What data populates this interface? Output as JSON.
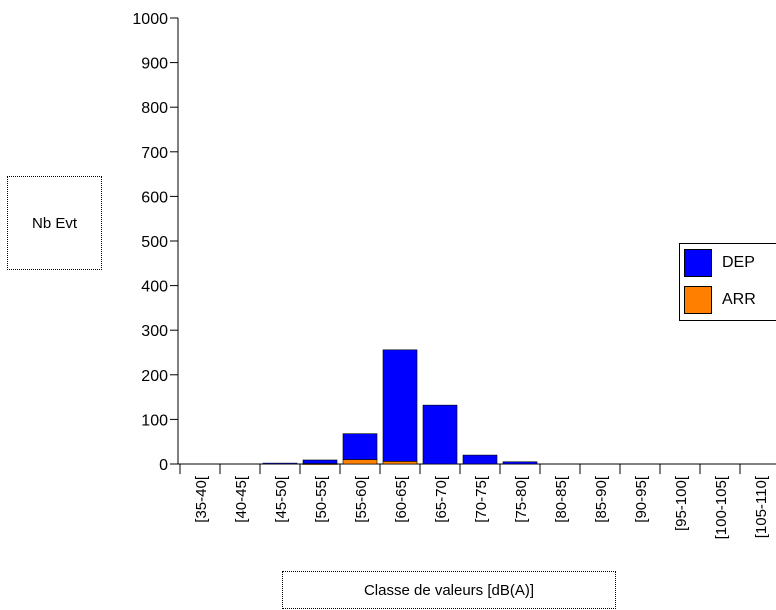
{
  "chart_data": {
    "type": "bar",
    "stacked": true,
    "title": "",
    "xlabel": "Classe de valeurs [dB(A)]",
    "ylabel": "Nb Evt",
    "ylim": [
      0,
      1000
    ],
    "yticks": [
      "0",
      "100",
      "200",
      "300",
      "400",
      "500",
      "600",
      "700",
      "800",
      "900",
      "1000"
    ],
    "grid": false,
    "legend_position": "right",
    "categories": [
      "[35-40[",
      "[40-45[",
      "[45-50[",
      "[50-55[",
      "[55-60[",
      "[60-65[",
      "[65-70[",
      "[70-75[",
      "[75-80[",
      "[80-85[",
      "[85-90[",
      "[90-95[",
      "[95-100[",
      "[100-105[",
      "[105-110["
    ],
    "series": [
      {
        "name": "ARR",
        "color": "#ff8000",
        "values": [
          0,
          0,
          0,
          1,
          10,
          6,
          0,
          0,
          0,
          0,
          0,
          0,
          0,
          0,
          0
        ]
      },
      {
        "name": "DEP",
        "color": "#0000ff",
        "values": [
          0,
          0,
          2,
          8,
          58,
          250,
          132,
          20,
          5,
          0,
          0,
          0,
          0,
          0,
          0
        ]
      }
    ]
  }
}
